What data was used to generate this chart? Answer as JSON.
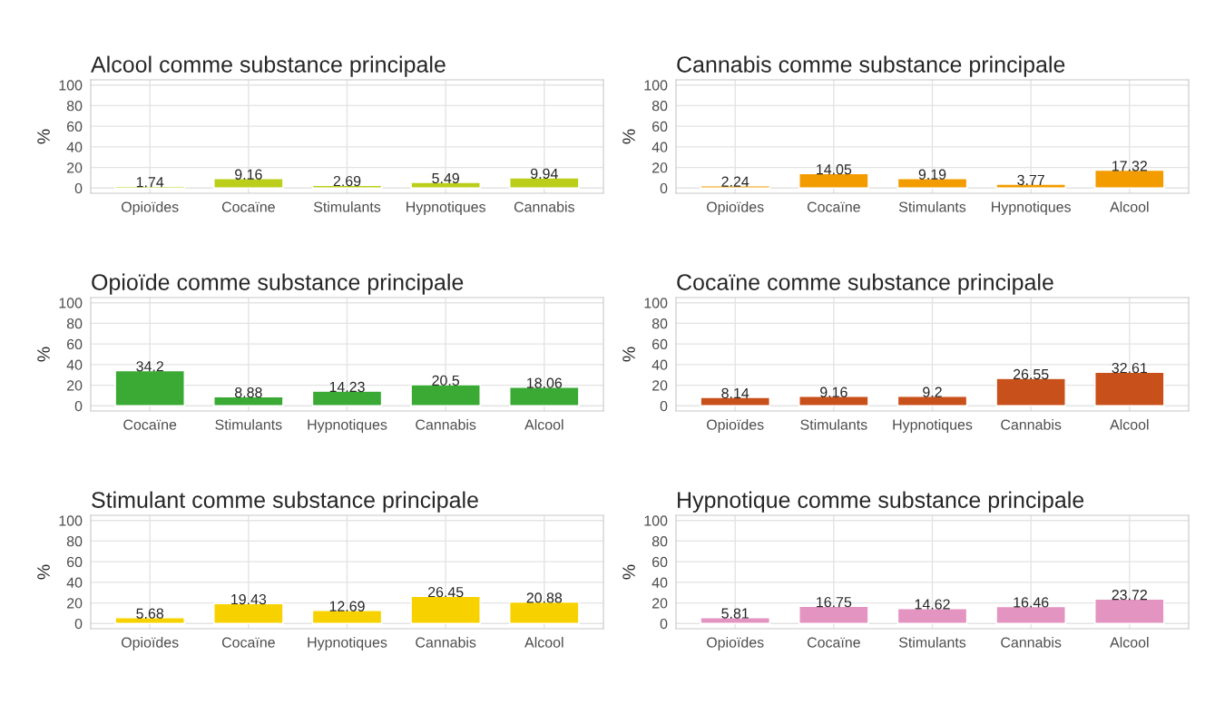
{
  "chart_data": [
    {
      "type": "bar",
      "title": "Alcool comme substance principale",
      "ylabel": "%",
      "categories": [
        "Opioïdes",
        "Cocaïne",
        "Stimulants",
        "Hypnotiques",
        "Cannabis"
      ],
      "values": [
        1.74,
        9.16,
        2.69,
        5.49,
        9.94
      ],
      "color": "#bbcf1a",
      "ylim": [
        -5,
        105
      ],
      "yticks": [
        0,
        20,
        40,
        60,
        80,
        100
      ],
      "grid": true,
      "data_labels": true
    },
    {
      "type": "bar",
      "title": "Cannabis comme substance principale",
      "ylabel": "%",
      "categories": [
        "Opioïdes",
        "Cocaïne",
        "Stimulants",
        "Hypnotiques",
        "Alcool"
      ],
      "values": [
        2.24,
        14.05,
        9.19,
        3.77,
        17.32
      ],
      "color": "#f39c00",
      "ylim": [
        -5,
        105
      ],
      "yticks": [
        0,
        20,
        40,
        60,
        80,
        100
      ],
      "grid": true,
      "data_labels": true
    },
    {
      "type": "bar",
      "title": "Opioïde comme substance principale",
      "ylabel": "%",
      "categories": [
        "Cocaïne",
        "Stimulants",
        "Hypnotiques",
        "Cannabis",
        "Alcool"
      ],
      "values": [
        34.2,
        8.88,
        14.23,
        20.5,
        18.06
      ],
      "color": "#3aaa35",
      "ylim": [
        -5,
        105
      ],
      "yticks": [
        0,
        20,
        40,
        60,
        80,
        100
      ],
      "grid": true,
      "data_labels": true
    },
    {
      "type": "bar",
      "title": "Cocaïne comme substance principale",
      "ylabel": "%",
      "categories": [
        "Opioïdes",
        "Stimulants",
        "Hypnotiques",
        "Cannabis",
        "Alcool"
      ],
      "values": [
        8.14,
        9.16,
        9.2,
        26.55,
        32.61
      ],
      "color": "#c8501a",
      "ylim": [
        -5,
        105
      ],
      "yticks": [
        0,
        20,
        40,
        60,
        80,
        100
      ],
      "grid": true,
      "data_labels": true
    },
    {
      "type": "bar",
      "title": "Stimulant comme substance principale",
      "ylabel": "%",
      "categories": [
        "Opioïdes",
        "Cocaïne",
        "Hypnotiques",
        "Cannabis",
        "Alcool"
      ],
      "values": [
        5.68,
        19.43,
        12.69,
        26.45,
        20.88
      ],
      "color": "#f8d200",
      "ylim": [
        -5,
        105
      ],
      "yticks": [
        0,
        20,
        40,
        60,
        80,
        100
      ],
      "grid": true,
      "data_labels": true
    },
    {
      "type": "bar",
      "title": "Hypnotique comme substance principale",
      "ylabel": "%",
      "categories": [
        "Opioïdes",
        "Cocaïne",
        "Stimulants",
        "Cannabis",
        "Alcool"
      ],
      "values": [
        5.81,
        16.75,
        14.62,
        16.46,
        23.72
      ],
      "color": "#e394c1",
      "ylim": [
        -5,
        105
      ],
      "yticks": [
        0,
        20,
        40,
        60,
        80,
        100
      ],
      "grid": true,
      "data_labels": true
    }
  ]
}
